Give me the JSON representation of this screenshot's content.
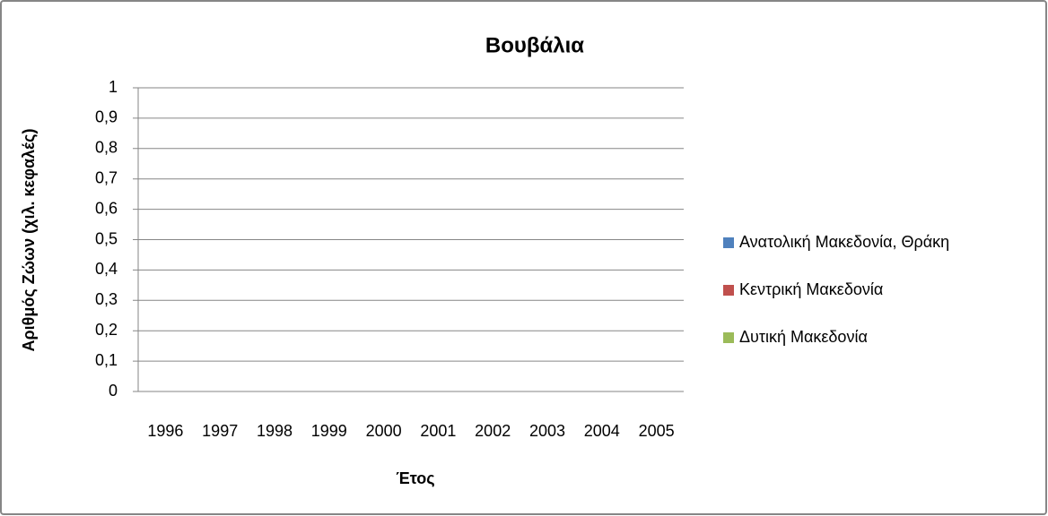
{
  "chart_data": {
    "type": "bar",
    "title": "Βουβάλια",
    "x_label": "Έτος",
    "y_label": "Αριθμός Ζώων (χιλ. κεφαλές)",
    "categories": [
      "1996",
      "1997",
      "1998",
      "1999",
      "2000",
      "2001",
      "2002",
      "2003",
      "2004",
      "2005"
    ],
    "series": [
      {
        "name": "Ανατολική Μακεδονία, Θράκη",
        "color": "#4f81bd",
        "values": [
          0,
          0,
          0,
          0,
          0,
          0,
          0,
          0,
          0,
          0
        ]
      },
      {
        "name": "Κεντρική Μακεδονία",
        "color": "#c0504d",
        "values": [
          0,
          0,
          0,
          0,
          0,
          0,
          0,
          0,
          0,
          0
        ]
      },
      {
        "name": "Δυτική Μακεδονία",
        "color": "#9bbb59",
        "values": [
          0,
          0,
          0,
          0,
          0,
          0,
          0,
          0,
          0,
          0
        ]
      }
    ],
    "ylim": [
      0,
      1
    ],
    "yticks": [
      0,
      {
        "value": 0.1,
        "label": "0,1"
      },
      {
        "value": 0.2,
        "label": "0,2"
      },
      {
        "value": 0.3,
        "label": "0,3"
      },
      {
        "value": 0.4,
        "label": "0,4"
      },
      {
        "value": 0.5,
        "label": "0,5"
      },
      {
        "value": 0.6,
        "label": "0,6"
      },
      {
        "value": 0.7,
        "label": "0,7"
      },
      {
        "value": 0.8,
        "label": "0,8"
      },
      {
        "value": 0.9,
        "label": "0,9"
      },
      1
    ],
    "grid": true,
    "legend": "right"
  }
}
